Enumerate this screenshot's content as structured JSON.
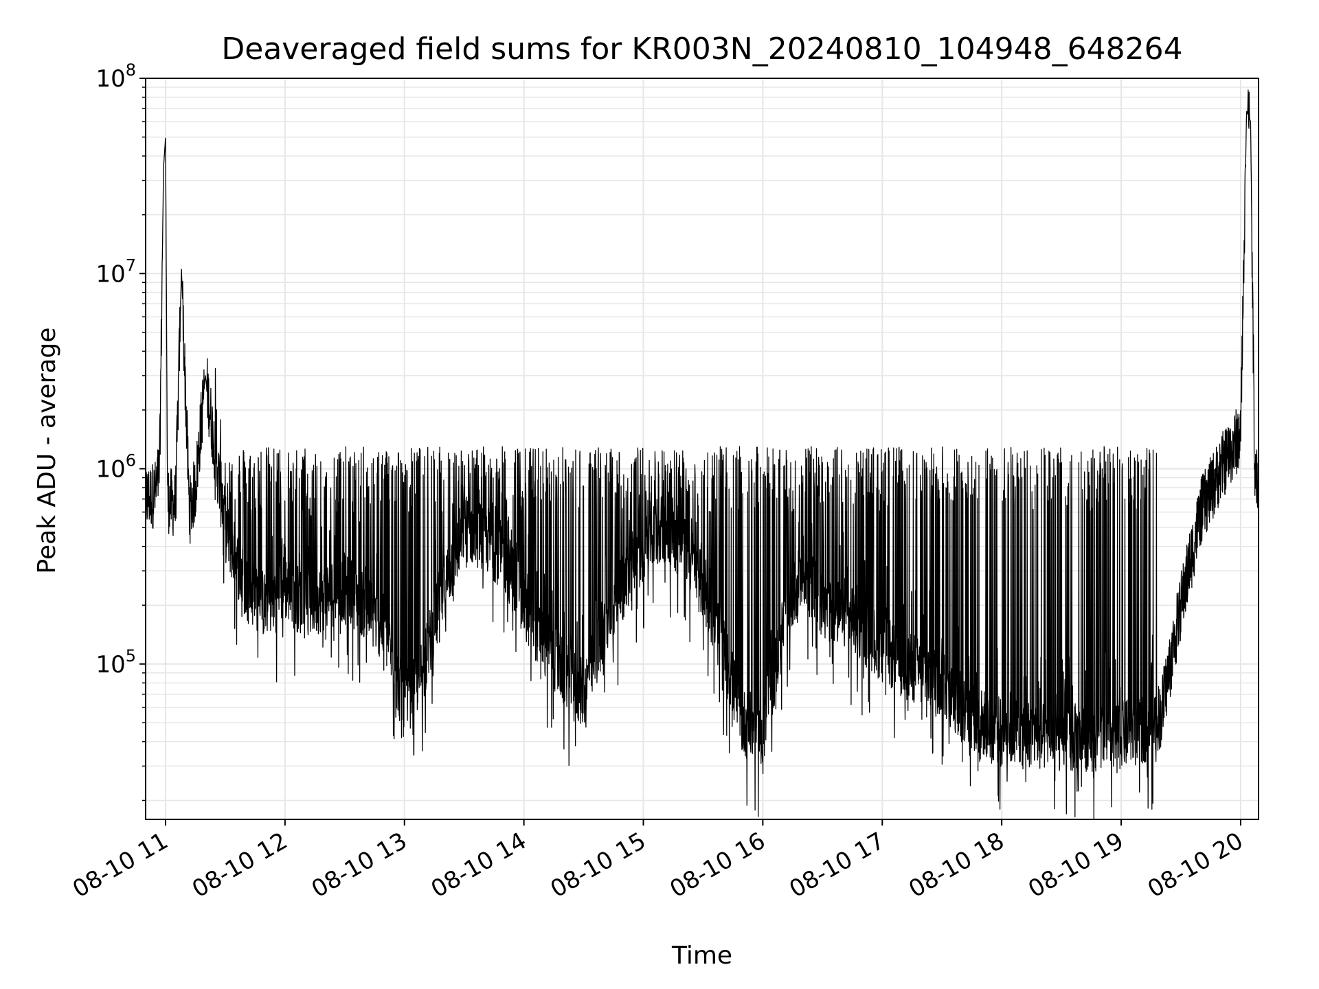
{
  "chart_data": {
    "type": "line",
    "title": "Deaveraged field sums for KR003N_20240810_104948_648264",
    "xlabel": "Time",
    "ylabel": "Peak ADU - average",
    "y_scale": "log",
    "ylim": [
      16000,
      100000000
    ],
    "xlim": [
      "08-10 10:50",
      "08-10 20:09"
    ],
    "grid": true,
    "legend": "none",
    "line_color": "#000000",
    "grid_color": "#e6e6e6",
    "x_ticks": [
      "08-10 11",
      "08-10 12",
      "08-10 13",
      "08-10 14",
      "08-10 15",
      "08-10 16",
      "08-10 17",
      "08-10 18",
      "08-10 19",
      "08-10 20"
    ],
    "y_ticks": [
      {
        "value": 100000,
        "base": "10",
        "exp": "5"
      },
      {
        "value": 1000000,
        "base": "10",
        "exp": "6"
      },
      {
        "value": 10000000,
        "base": "10",
        "exp": "7"
      },
      {
        "value": 100000000,
        "base": "10",
        "exp": "8"
      }
    ],
    "series": [
      {
        "x": [
          "08-10 10:50",
          "08-10 10:55",
          "08-10 10:57",
          "08-10 10:59",
          "08-10 11:00",
          "08-10 11:01",
          "08-10 11:05",
          "08-10 11:08",
          "08-10 11:12",
          "08-10 11:15",
          "08-10 11:20",
          "08-10 11:30",
          "08-10 11:40",
          "08-10 11:50",
          "08-10 12:00",
          "08-10 12:10",
          "08-10 12:20",
          "08-10 12:30",
          "08-10 12:40",
          "08-10 12:50",
          "08-10 13:00",
          "08-10 13:10",
          "08-10 13:20",
          "08-10 13:30",
          "08-10 13:40",
          "08-10 13:50",
          "08-10 14:00",
          "08-10 14:10",
          "08-10 14:20",
          "08-10 14:30",
          "08-10 14:40",
          "08-10 14:50",
          "08-10 15:00",
          "08-10 15:10",
          "08-10 15:20",
          "08-10 15:30",
          "08-10 15:40",
          "08-10 15:50",
          "08-10 16:00",
          "08-10 16:10",
          "08-10 16:20",
          "08-10 16:30",
          "08-10 16:40",
          "08-10 16:50",
          "08-10 17:00",
          "08-10 17:10",
          "08-10 17:20",
          "08-10 17:30",
          "08-10 17:40",
          "08-10 17:50",
          "08-10 18:00",
          "08-10 18:10",
          "08-10 18:20",
          "08-10 18:30",
          "08-10 18:40",
          "08-10 18:50",
          "08-10 19:00",
          "08-10 19:10",
          "08-10 19:20",
          "08-10 19:30",
          "08-10 19:40",
          "08-10 19:50",
          "08-10 20:00",
          "08-10 20:03",
          "08-10 20:05",
          "08-10 20:07",
          "08-10 20:09"
        ],
        "y": [
          700000,
          750000,
          1000000,
          35000000,
          50000000,
          700000,
          650000,
          10500000,
          600000,
          800000,
          3000000,
          500000,
          250000,
          200000,
          250000,
          200000,
          220000,
          250000,
          200000,
          150000,
          60000,
          100000,
          250000,
          500000,
          450000,
          350000,
          200000,
          130000,
          90000,
          70000,
          150000,
          250000,
          400000,
          500000,
          400000,
          250000,
          120000,
          50000,
          45000,
          150000,
          300000,
          200000,
          180000,
          150000,
          120000,
          100000,
          90000,
          80000,
          60000,
          50000,
          45000,
          45000,
          42000,
          42000,
          42000,
          42000,
          43000,
          45000,
          55000,
          200000,
          600000,
          1000000,
          1500000,
          68000000,
          60000000,
          1100000,
          800000
        ]
      }
    ]
  }
}
